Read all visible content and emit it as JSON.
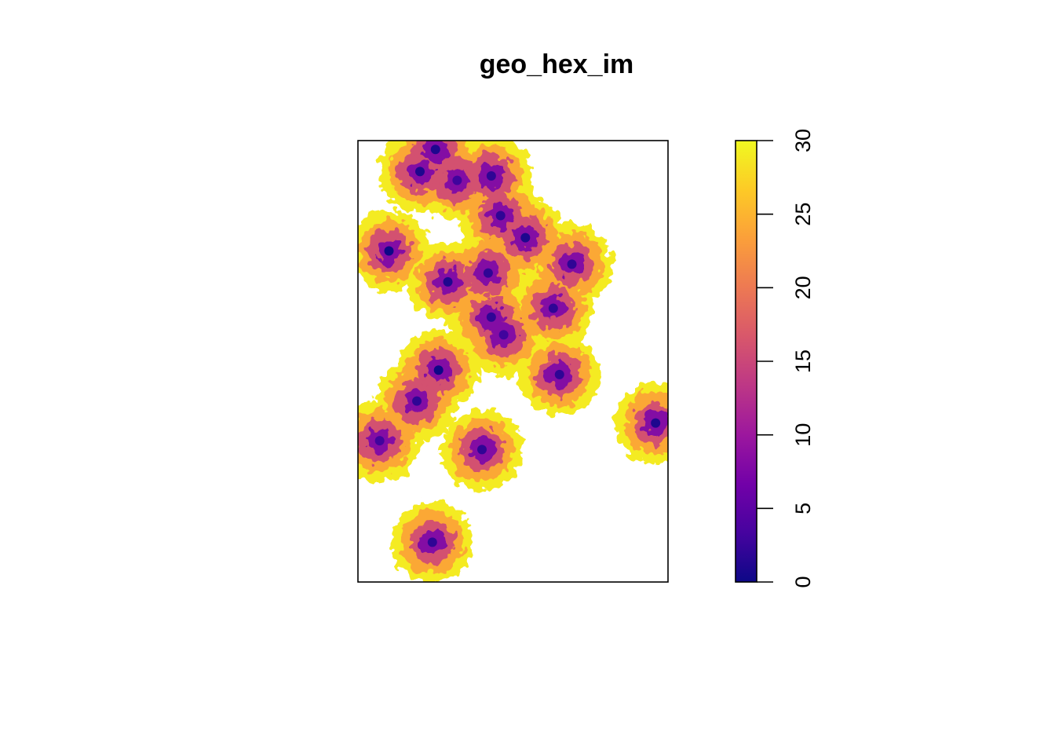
{
  "chart_data": {
    "type": "heatmap",
    "title": "geo_hex_im",
    "xlabel": "",
    "ylabel": "",
    "legend": {
      "position": "right",
      "range": [
        0,
        30
      ],
      "ticks": [
        0,
        5,
        10,
        15,
        20,
        25,
        30
      ],
      "tick_labels": [
        "0",
        "5",
        "10",
        "15",
        "20",
        "25",
        "30"
      ],
      "colormap": "plasma",
      "color_stops": [
        "#0d0887",
        "#46039f",
        "#7201a8",
        "#9c179e",
        "#bd3786",
        "#d8576b",
        "#ed7953",
        "#fb9f3a",
        "#fdca26",
        "#f0f921"
      ]
    },
    "clusters": [
      {
        "x": 0.2,
        "y": 0.07,
        "value": 1
      },
      {
        "x": 0.32,
        "y": 0.09,
        "value": 3
      },
      {
        "x": 0.43,
        "y": 0.08,
        "value": 2
      },
      {
        "x": 0.25,
        "y": 0.02,
        "value": 1
      },
      {
        "x": 0.46,
        "y": 0.17,
        "value": 2
      },
      {
        "x": 0.54,
        "y": 0.22,
        "value": 1
      },
      {
        "x": 0.1,
        "y": 0.25,
        "value": 0
      },
      {
        "x": 0.29,
        "y": 0.32,
        "value": 1
      },
      {
        "x": 0.42,
        "y": 0.3,
        "value": 2
      },
      {
        "x": 0.69,
        "y": 0.28,
        "value": 2
      },
      {
        "x": 0.43,
        "y": 0.4,
        "value": 2
      },
      {
        "x": 0.63,
        "y": 0.38,
        "value": 2
      },
      {
        "x": 0.47,
        "y": 0.44,
        "value": 3
      },
      {
        "x": 0.26,
        "y": 0.52,
        "value": 0
      },
      {
        "x": 0.65,
        "y": 0.53,
        "value": 2
      },
      {
        "x": 0.19,
        "y": 0.59,
        "value": 2
      },
      {
        "x": 0.96,
        "y": 0.64,
        "value": 1
      },
      {
        "x": 0.07,
        "y": 0.68,
        "value": 3
      },
      {
        "x": 0.4,
        "y": 0.7,
        "value": 2
      },
      {
        "x": 0.24,
        "y": 0.91,
        "value": 2
      }
    ]
  }
}
